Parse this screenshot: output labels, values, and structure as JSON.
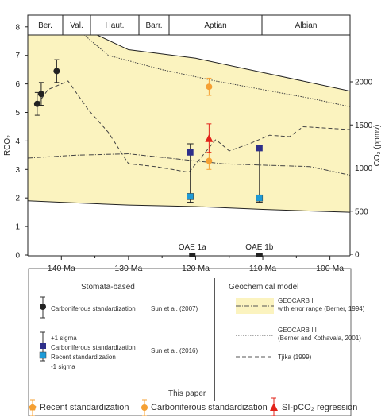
{
  "chart_data": {
    "type": "line",
    "periods": [
      "Ber.",
      "Val.",
      "Haut.",
      "Barr.",
      "Aptian",
      "Albian"
    ],
    "x": {
      "reversed": true,
      "range": [
        145,
        97
      ],
      "ticks": [
        140,
        130,
        120,
        110,
        100
      ],
      "tick_labels": [
        "140 Ma",
        "130 Ma",
        "120 Ma",
        "110 Ma",
        "100 Ma"
      ]
    },
    "y_left": {
      "label": "RCO₂",
      "range": [
        0,
        8.5
      ],
      "ticks": [
        0,
        1,
        2,
        3,
        4,
        5,
        6,
        7,
        8
      ],
      "tick_labels": [
        "0",
        "1",
        "2",
        "3",
        "4",
        "5",
        "6",
        "7",
        "8"
      ]
    },
    "y_right": {
      "label": "CO₂ (ppmv)",
      "ticks": [
        0,
        500,
        1000,
        1500,
        2000
      ],
      "tick_labels": [
        "0",
        "500",
        "1000",
        "1500",
        "2000"
      ]
    },
    "geocarb2_band": {
      "upper": [
        [
          145,
          8.6
        ],
        [
          140,
          8.3
        ],
        [
          130,
          7.2
        ],
        [
          120,
          6.9
        ],
        [
          110,
          6.4
        ],
        [
          97,
          5.75
        ]
      ],
      "lower": [
        [
          145,
          1.9
        ],
        [
          140,
          1.85
        ],
        [
          130,
          1.75
        ],
        [
          120,
          1.7
        ],
        [
          110,
          1.6
        ],
        [
          97,
          1.5
        ]
      ],
      "color": "#fbf3bf"
    },
    "geocarb3": [
      [
        145,
        7.9
      ],
      [
        143,
        8.0
      ],
      [
        139,
        8.2
      ],
      [
        133,
        7.0
      ],
      [
        125,
        6.5
      ],
      [
        117,
        6.1
      ],
      [
        110,
        5.8
      ],
      [
        103,
        5.5
      ],
      [
        97,
        5.2
      ]
    ],
    "geocarb2_mid": [
      [
        145,
        3.4
      ],
      [
        138,
        3.5
      ],
      [
        130,
        3.55
      ],
      [
        124,
        3.4
      ],
      [
        116,
        3.2
      ],
      [
        110,
        3.15
      ],
      [
        103,
        3.1
      ],
      [
        97,
        2.8
      ]
    ],
    "tajika": [
      [
        143.5,
        5.3
      ],
      [
        142,
        5.8
      ],
      [
        139,
        6.1
      ],
      [
        136,
        5.1
      ],
      [
        133,
        4.3
      ],
      [
        130,
        3.2
      ],
      [
        126,
        3.1
      ],
      [
        121,
        2.9
      ],
      [
        117,
        4.05
      ],
      [
        115,
        3.65
      ],
      [
        112,
        3.9
      ],
      [
        109,
        4.2
      ],
      [
        106,
        4.15
      ],
      [
        104,
        4.5
      ],
      [
        97,
        4.4
      ]
    ],
    "sun2007": [
      {
        "x": 143.6,
        "y": 5.3,
        "err": 0.4
      },
      {
        "x": 143.0,
        "y": 5.65,
        "err": 0.4
      },
      {
        "x": 140.7,
        "y": 6.45,
        "err": 0.4
      }
    ],
    "sun2016": [
      {
        "x": 120.8,
        "carboniferous": 3.6,
        "recent": 2.05,
        "upper": 3.9,
        "lower": 1.85
      },
      {
        "x": 110.5,
        "carboniferous": 3.75,
        "recent": 2.0,
        "upper": 3.85,
        "lower": 1.85
      }
    ],
    "this_paper": {
      "carboniferous": [
        {
          "x": 118.0,
          "y": 5.9,
          "err": 0.3
        },
        {
          "x": 118.0,
          "y": 3.3,
          "err": 0.3
        }
      ],
      "si_pco2": {
        "x": 118.0,
        "y": 4.1,
        "err": 0.5
      }
    },
    "events": [
      {
        "label": "OAE 1a",
        "x": 120.5
      },
      {
        "label": "OAE 1b",
        "x": 110.5
      }
    ]
  },
  "legend": {
    "stomata_header": "Stomata-based",
    "geochem_header": "Geochemical model",
    "carb_std_label": "Carboniferous standardization",
    "sun2007_ref": "Sun et al. (2007)",
    "plus_sigma": "+1 sigma",
    "carb_std_label2": "Carboniferous standardization",
    "recent_std_label": "Recent standardization",
    "minus_sigma": "-1 sigma",
    "sun2016_ref": "Sun et al. (2016)",
    "geocarb2_title": "GEOCARB II",
    "geocarb2_sub": "with error range (Berner, 1994)",
    "geocarb3_title": "GEOCARB III",
    "geocarb3_sub": "(Berner and Kothavala, 2001)",
    "tajika_label": "Tjika (1999)",
    "this_paper": "This paper",
    "tp_recent": "Recent standardization",
    "tp_carb": "Carboniferous standardization",
    "tp_si": "SI-pCO₂ regression",
    "colors": {
      "carb_square": "#2e2f8a",
      "recent_square": "#1e9bd7",
      "orange": "#f5a033",
      "red": "#e2231a",
      "band": "#fbf3bf"
    }
  }
}
